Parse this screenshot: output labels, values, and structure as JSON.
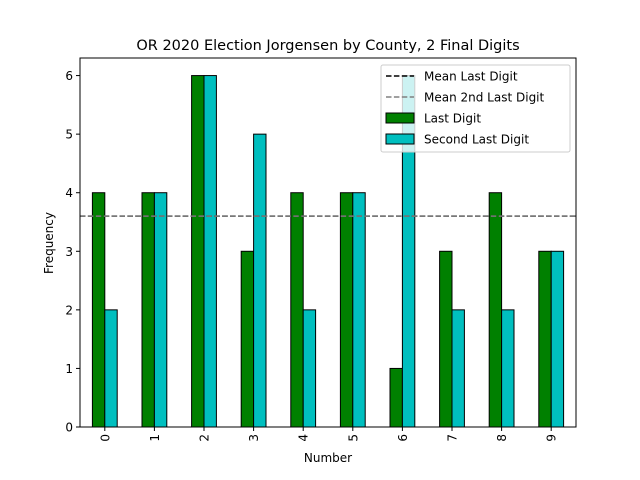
{
  "chart_data": {
    "type": "bar",
    "title": "OR 2020 Election Jorgensen by County, 2 Final Digits",
    "xlabel": "Number",
    "ylabel": "Frequency",
    "categories": [
      "0",
      "1",
      "2",
      "3",
      "4",
      "5",
      "6",
      "7",
      "8",
      "9"
    ],
    "series": [
      {
        "name": "Last Digit",
        "color": "#008000",
        "values": [
          4,
          4,
          6,
          3,
          4,
          4,
          1,
          3,
          4,
          3
        ]
      },
      {
        "name": "Second Last Digit",
        "color": "#00bfbf",
        "values": [
          2,
          4,
          6,
          5,
          2,
          4,
          6,
          2,
          2,
          3
        ]
      }
    ],
    "reference_lines": [
      {
        "name": "Mean Last Digit",
        "value": 3.6,
        "color": "#000000",
        "style": "dashed"
      },
      {
        "name": "Mean 2nd Last Digit",
        "value": 3.6,
        "color": "#808080",
        "style": "dashed"
      }
    ],
    "ylim": [
      0,
      6.3
    ],
    "yticks": [
      0,
      1,
      2,
      3,
      4,
      5,
      6
    ],
    "legend_position": "top-right",
    "grid": false
  }
}
